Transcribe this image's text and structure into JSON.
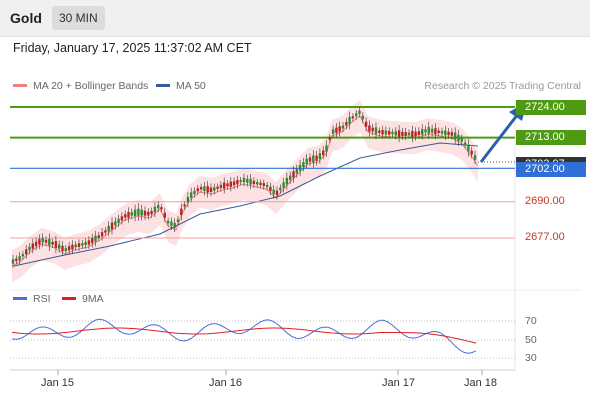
{
  "header": {
    "instrument": "Gold",
    "timeframe": "30 MIN"
  },
  "datetime": "Friday, January 17, 2025 11:37:02 AM CET",
  "legend": [
    {
      "label": "MA 20 + Bollinger Bands",
      "color": "#f08080"
    },
    {
      "label": "MA 50",
      "color": "#3a5a9a"
    }
  ],
  "credit": "Research © 2025 Trading Central",
  "levels": {
    "r2": "2724.00",
    "r1": "2713.00",
    "last": "2703.97",
    "pivot": "2702.00",
    "s1": "2690.00",
    "s2": "2677.00"
  },
  "rsi_legend": [
    {
      "label": "RSI",
      "color": "#4a6fd8"
    },
    {
      "label": "9MA",
      "color": "#e02020"
    }
  ],
  "rsi_ticks": [
    "70",
    "50",
    "30"
  ],
  "x_labels": [
    "Jan 15",
    "Jan 16",
    "Jan 17",
    "Jan 18"
  ],
  "colors": {
    "resistance": "#4f9a13",
    "pivot": "#2f6fd6",
    "support": "#f0a0a0",
    "arrow": "#2c5fb0",
    "up": "#2e8b2e",
    "down": "#c02020"
  }
}
